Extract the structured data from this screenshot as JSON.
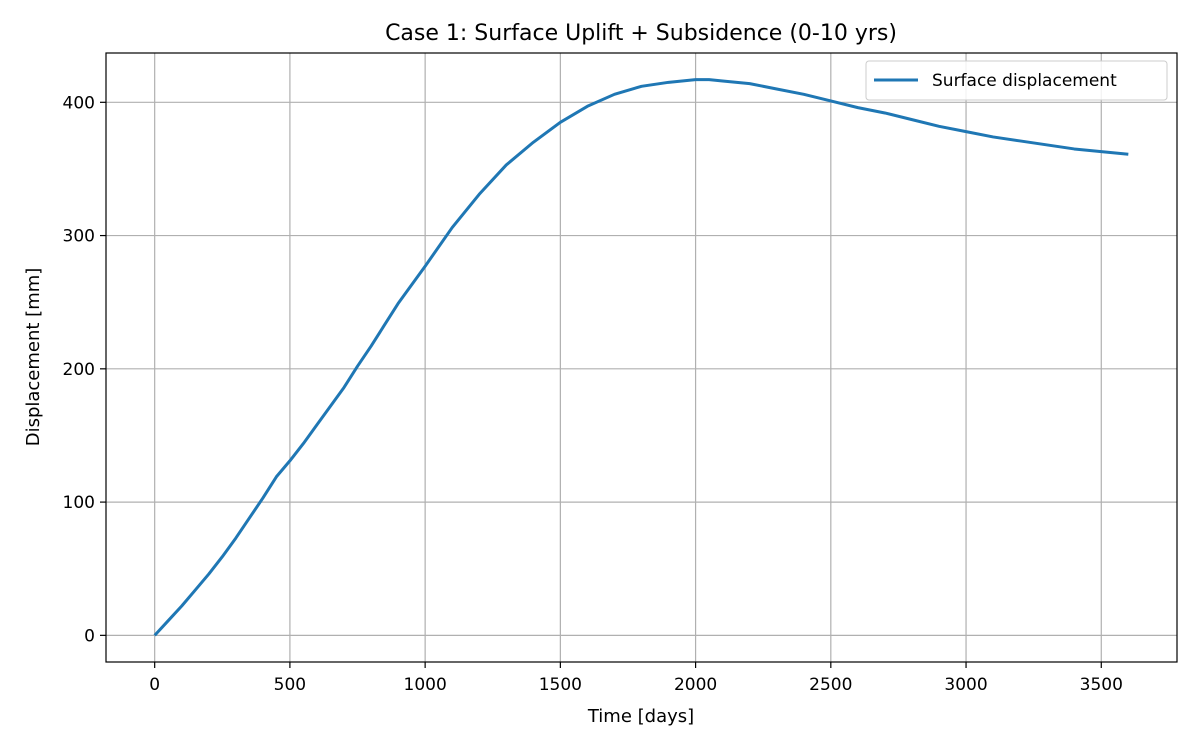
{
  "chart_data": {
    "type": "line",
    "title": "Case 1: Surface Uplift + Subsidence (0-10 yrs)",
    "xlabel": "Time [days]",
    "ylabel": "Displacement [mm]",
    "xlim": [
      -180,
      3780
    ],
    "ylim": [
      -20,
      437
    ],
    "xticks": [
      0,
      500,
      1000,
      1500,
      2000,
      2500,
      3000,
      3500
    ],
    "yticks": [
      0,
      100,
      200,
      300,
      400
    ],
    "grid": true,
    "legend_position": "top-right",
    "series": [
      {
        "name": "Surface displacement",
        "color": "#1f77b4",
        "x": [
          0,
          50,
          100,
          150,
          200,
          250,
          300,
          350,
          400,
          450,
          500,
          550,
          600,
          650,
          700,
          750,
          800,
          850,
          900,
          950,
          1000,
          1100,
          1200,
          1300,
          1400,
          1500,
          1600,
          1700,
          1800,
          1900,
          2000,
          2050,
          2100,
          2200,
          2300,
          2400,
          2500,
          2600,
          2700,
          2800,
          2900,
          3000,
          3100,
          3200,
          3300,
          3400,
          3500,
          3600
        ],
        "y": [
          0,
          11,
          22,
          34,
          46,
          59,
          73,
          88,
          103,
          119,
          131,
          144,
          158,
          172,
          186,
          202,
          217,
          233,
          249,
          263,
          277,
          306,
          331,
          353,
          370,
          385,
          397,
          406,
          412,
          415,
          417,
          417,
          416,
          414,
          410,
          406,
          401,
          396,
          392,
          387,
          382,
          378,
          374,
          371,
          368,
          365,
          363,
          361
        ]
      }
    ]
  }
}
